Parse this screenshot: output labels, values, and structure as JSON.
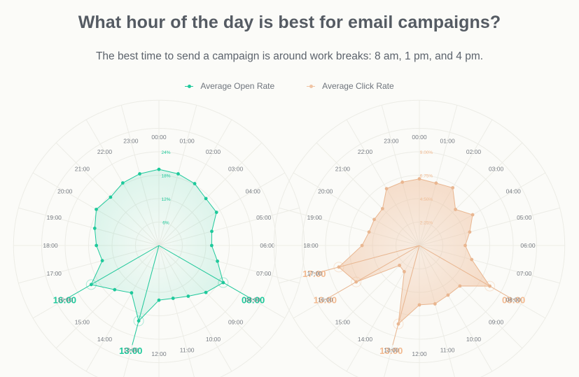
{
  "header": {
    "title": "What hour of the day is best for email campaigns?",
    "subtitle": "The best time to send a campaign is around work breaks: 8 am, 1 pm, and 4 pm."
  },
  "colors": {
    "open": "#1ec99b",
    "click": "#f0c4a4",
    "click_label": "#f2b98f",
    "grid": "#ecece6",
    "hour_text": "#777c83"
  },
  "chart_data": [
    {
      "type": "radar",
      "series": [
        {
          "name": "Average Open Rate"
        }
      ],
      "categories": [
        "00:00",
        "01:00",
        "02:00",
        "03:00",
        "04:00",
        "05:00",
        "06:00",
        "07:00",
        "08:00",
        "09:00",
        "10:00",
        "11:00",
        "12:00",
        "13:00",
        "14:00",
        "15:00",
        "16:00",
        "17:00",
        "18:00",
        "19:00",
        "20:00",
        "21:00",
        "22:00",
        "23:00"
      ],
      "values": [
        19.5,
        19.0,
        18.3,
        17.0,
        17.0,
        14.0,
        13.5,
        15.5,
        19.0,
        17.0,
        15.0,
        14.0,
        14.0,
        20.0,
        14.0,
        16.0,
        20.0,
        15.0,
        16.0,
        17.0,
        18.5,
        17.5,
        18.5,
        19.0
      ],
      "radial_ticks": [
        "6%",
        "12%",
        "18%",
        "24%"
      ],
      "rmax": 24,
      "highlights": [
        {
          "hour": "08:00",
          "label": "08:00"
        },
        {
          "hour": "13:00",
          "label": "13:00"
        },
        {
          "hour": "16:00",
          "label": "16:00"
        }
      ]
    },
    {
      "type": "radar",
      "series": [
        {
          "name": "Average Click Rate"
        }
      ],
      "categories": [
        "00:00",
        "01:00",
        "02:00",
        "03:00",
        "04:00",
        "05:00",
        "06:00",
        "07:00",
        "08:00",
        "09:00",
        "10:00",
        "11:00",
        "12:00",
        "13:00",
        "14:00",
        "15:00",
        "16:00",
        "17:00",
        "18:00",
        "19:00",
        "20:00",
        "21:00",
        "22:00",
        "23:00"
      ],
      "values": [
        6.4,
        6.2,
        6.4,
        4.9,
        5.9,
        5.0,
        4.4,
        5.2,
        7.8,
        5.5,
        5.5,
        5.8,
        5.7,
        7.8,
        2.9,
        2.7,
        7.0,
        8.0,
        5.5,
        5.0,
        5.0,
        5.0,
        6.3,
        6.3
      ],
      "radial_ticks": [
        "2.25%",
        "4.50%",
        "6.75%",
        "9.00%"
      ],
      "rmax": 9,
      "highlights": [
        {
          "hour": "08:00",
          "label": "08:00"
        },
        {
          "hour": "13:00",
          "label": "13:00"
        },
        {
          "hour": "16:00",
          "label": "16:00"
        },
        {
          "hour": "17:00",
          "label": "17:00"
        }
      ]
    }
  ]
}
